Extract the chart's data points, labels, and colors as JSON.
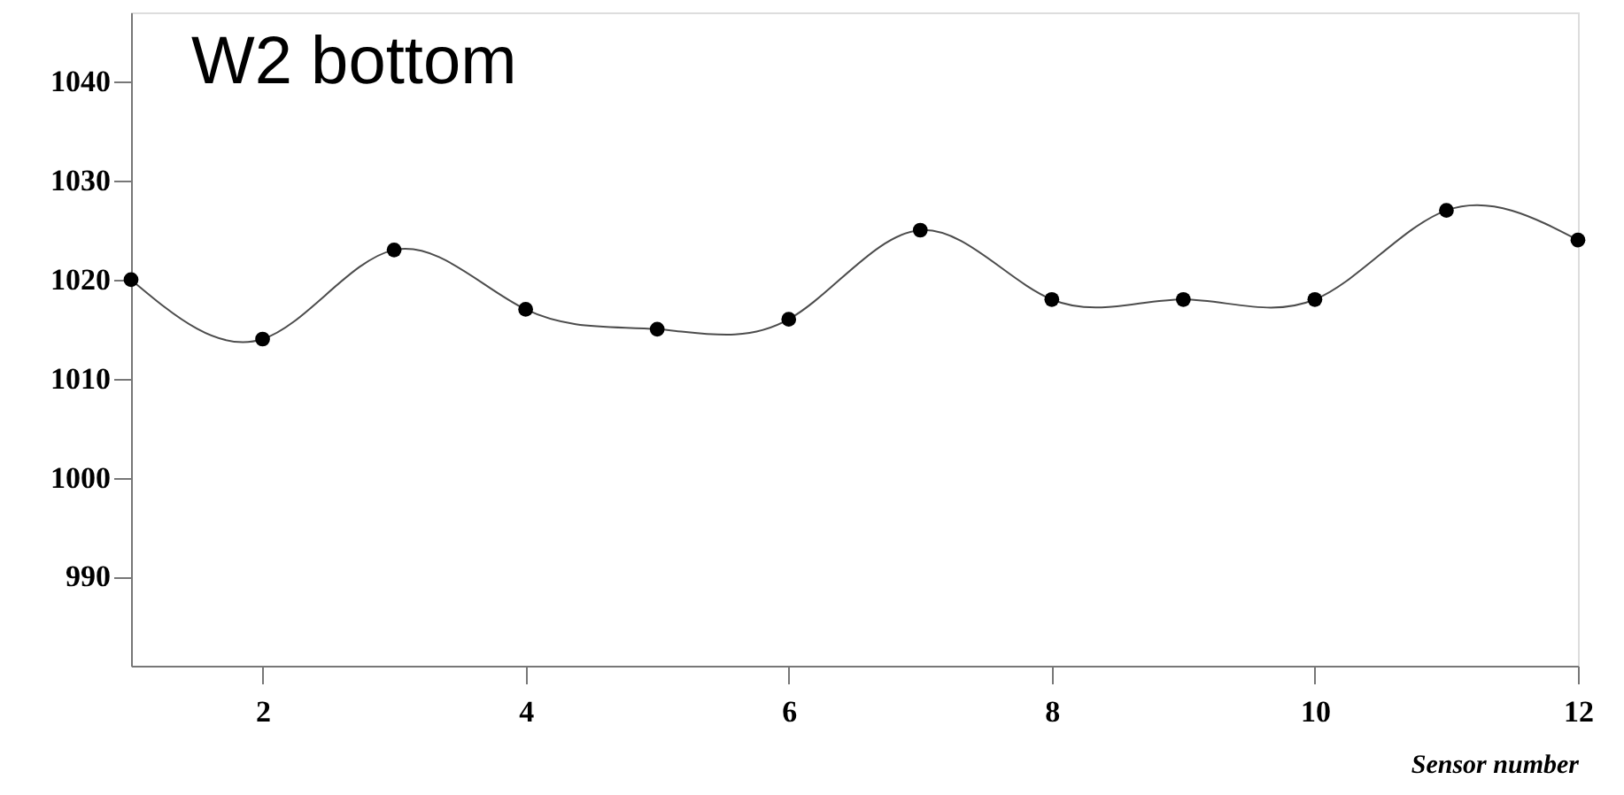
{
  "chart_data": {
    "type": "line",
    "title": "W2 bottom",
    "xlabel": "Sensor number",
    "x": [
      1,
      2,
      3,
      4,
      5,
      6,
      7,
      8,
      9,
      10,
      11,
      12
    ],
    "series": [
      {
        "color": "#000000",
        "values": [
          1020,
          1014,
          1023,
          1017,
          1015,
          1016,
          1025,
          1018,
          1018,
          1018,
          1027,
          1024
        ]
      }
    ],
    "xlim": [
      1,
      12
    ],
    "xticks": [
      2,
      4,
      6,
      8,
      10,
      12
    ],
    "ylim": [
      981,
      1047
    ],
    "yticks": [
      990,
      1000,
      1010,
      1020,
      1030,
      1040
    ],
    "grid": false,
    "marker": "circle",
    "line_style": "solid"
  }
}
